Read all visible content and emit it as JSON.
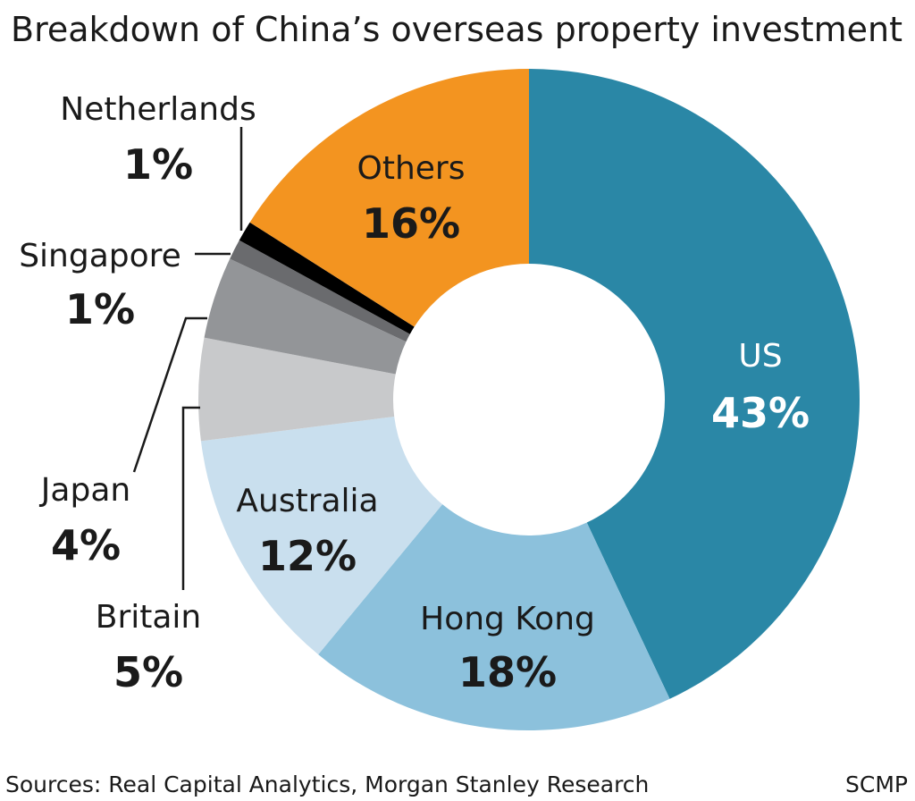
{
  "chart_data": {
    "type": "pie",
    "donut": true,
    "title": "Breakdown of China’s overseas property investment",
    "slices": [
      {
        "label": "US",
        "value": 43,
        "value_label": "43%",
        "color": "#2a87a6"
      },
      {
        "label": "Hong Kong",
        "value": 18,
        "value_label": "18%",
        "color": "#8cc1dc"
      },
      {
        "label": "Australia",
        "value": 12,
        "value_label": "12%",
        "color": "#c9dfee"
      },
      {
        "label": "Britain",
        "value": 5,
        "value_label": "5%",
        "color": "#c8c9cb"
      },
      {
        "label": "Japan",
        "value": 4,
        "value_label": "4%",
        "color": "#939598"
      },
      {
        "label": "Singapore",
        "value": 1,
        "value_label": "1%",
        "color": "#6a6b6e"
      },
      {
        "label": "Netherlands",
        "value": 1,
        "value_label": "1%",
        "color": "#000000"
      },
      {
        "label": "Others",
        "value": 16,
        "value_label": "16%",
        "color": "#f39420"
      }
    ],
    "sources": "Sources: Real Capital Analytics, Morgan Stanley Research",
    "credit": "SCMP"
  }
}
